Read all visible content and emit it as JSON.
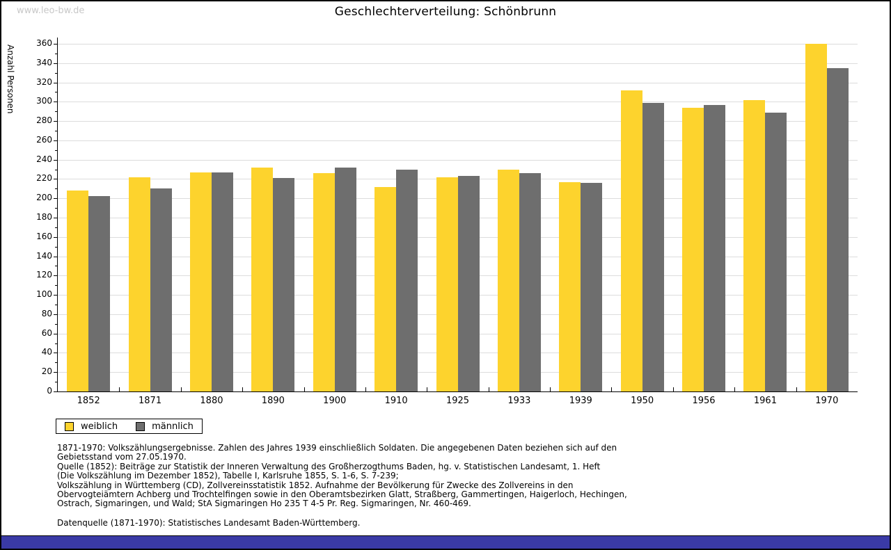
{
  "watermark": "www.leo-bw.de",
  "chart_data": {
    "type": "bar",
    "title": "Geschlechterverteilung: Schönbrunn",
    "ylabel": "Anzahl Personen",
    "xlabel": "",
    "categories": [
      "1852",
      "1871",
      "1880",
      "1890",
      "1900",
      "1910",
      "1925",
      "1933",
      "1939",
      "1950",
      "1956",
      "1961",
      "1970"
    ],
    "series": [
      {
        "name": "weiblich",
        "color": "#FDD32D",
        "values": [
          208,
          222,
          227,
          232,
          226,
          212,
          222,
          230,
          217,
          312,
          294,
          302,
          360
        ]
      },
      {
        "name": "männlich",
        "color": "#6E6E6E",
        "values": [
          202,
          210,
          227,
          221,
          232,
          230,
          223,
          226,
          216,
          299,
          297,
          289,
          335
        ]
      }
    ],
    "ylim": [
      0,
      360
    ],
    "ytick_step": 20,
    "minor_tick_step": 10,
    "grid": true,
    "legend_position": "bottom-left"
  },
  "footer": {
    "lines": [
      "1871-1970: Volkszählungsergebnisse. Zahlen des Jahres 1939 einschließlich Soldaten. Die angegebenen Daten beziehen sich auf den",
      "Gebietsstand vom 27.05.1970.",
      "Quelle (1852): Beiträge zur Statistik der Inneren Verwaltung des Großherzogthums Baden, hg. v. Statistischen Landesamt, 1. Heft",
      "(Die Volkszählung im Dezember 1852), Tabelle I, Karlsruhe 1855, S. 1-6, S. 7-239;",
      "Volkszählung in Württemberg (CD), Zollvereinsstatistik 1852. Aufnahme der Bevölkerung für Zwecke des Zollvereins in den",
      "Obervogteiämtern Achberg und Trochtelfingen sowie in den Oberamtsbezirken Glatt, Straßberg, Gammertingen, Haigerloch, Hechingen,",
      "Ostrach, Sigmaringen, und Wald; StA Sigmaringen Ho 235 T 4-5 Pr. Reg. Sigmaringen, Nr. 460-469."
    ],
    "datasource": "Datenquelle (1871-1970): Statistisches Landesamt Baden-Württemberg."
  },
  "colors": {
    "bar_female": "#FDD32D",
    "bar_male": "#6E6E6E",
    "grid": "#DCDCDC",
    "axis": "#000000",
    "watermark": "#C8C8C8",
    "footer_bar": "#3A3AA6"
  }
}
